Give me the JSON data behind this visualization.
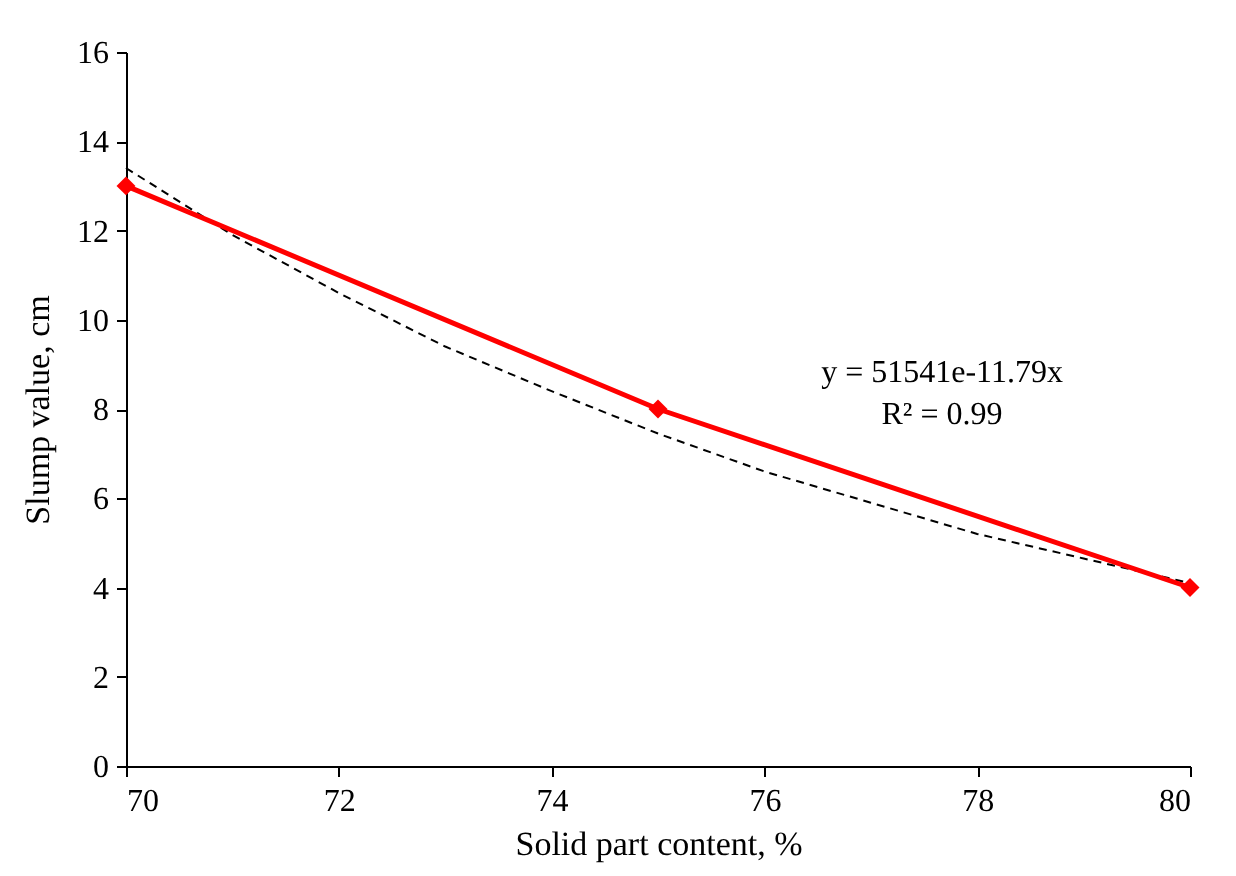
{
  "chart_data": {
    "type": "line",
    "xlabel": "Solid part content, %",
    "ylabel": "Slump value, cm",
    "xlim": [
      70,
      80
    ],
    "xticks": [
      70,
      72,
      74,
      76,
      78,
      80
    ],
    "ylim": [
      0,
      16
    ],
    "yticks": [
      0,
      2,
      4,
      6,
      8,
      10,
      12,
      14,
      16
    ],
    "grid": false,
    "annotations": [
      "y = 51541e-11.79x",
      "R² = 0.99"
    ],
    "series": [
      {
        "x": [
          70,
          71,
          72,
          73,
          74,
          75,
          76,
          77,
          78,
          79,
          80
        ],
        "values": [
          13.4,
          11.9,
          10.6,
          9.4,
          8.4,
          7.45,
          6.6,
          5.9,
          5.2,
          4.65,
          4.1
        ],
        "color": "#000000",
        "line_style": "dashed",
        "marker": "none"
      },
      {
        "x": [
          70,
          75,
          80
        ],
        "values": [
          13,
          8,
          4
        ],
        "color": "#ff0000",
        "line_style": "solid",
        "marker": "diamond"
      }
    ]
  }
}
